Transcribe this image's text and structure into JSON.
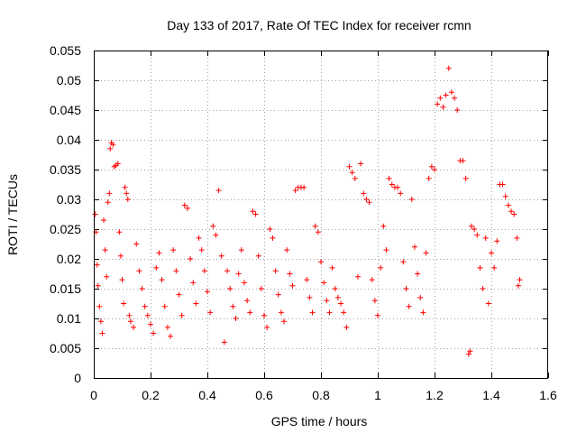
{
  "chart_data": {
    "type": "scatter",
    "title": "Day 133 of 2017, Rate Of TEC Index for receiver rcmn",
    "xlabel": "GPS time / hours",
    "ylabel": "ROTI / TECUs",
    "xlim": [
      0,
      1.6
    ],
    "ylim": [
      0,
      0.055
    ],
    "xticks": [
      0,
      0.2,
      0.4,
      0.6,
      0.8,
      1,
      1.2,
      1.4,
      1.6
    ],
    "xtick_labels": [
      "0",
      "0.2",
      "0.4",
      "0.6",
      "0.8",
      "1",
      "1.2",
      "1.4",
      "1.6"
    ],
    "yticks": [
      0,
      0.005,
      0.01,
      0.015,
      0.02,
      0.025,
      0.03,
      0.035,
      0.04,
      0.045,
      0.05,
      0.055
    ],
    "ytick_labels": [
      "0",
      "0.005",
      "0.01",
      "0.015",
      "0.02",
      "0.025",
      "0.03",
      "0.035",
      "0.04",
      "0.045",
      "0.05",
      "0.055"
    ],
    "grid": true,
    "marker": "+",
    "marker_color": "#ff0000",
    "series": [
      {
        "name": "ROTI",
        "points": [
          [
            0.005,
            0.0275
          ],
          [
            0.008,
            0.0245
          ],
          [
            0.012,
            0.019
          ],
          [
            0.015,
            0.0155
          ],
          [
            0.02,
            0.012
          ],
          [
            0.025,
            0.0095
          ],
          [
            0.03,
            0.0075
          ],
          [
            0.035,
            0.0265
          ],
          [
            0.04,
            0.0215
          ],
          [
            0.045,
            0.017
          ],
          [
            0.05,
            0.0295
          ],
          [
            0.055,
            0.031
          ],
          [
            0.058,
            0.0385
          ],
          [
            0.062,
            0.0395
          ],
          [
            0.068,
            0.0392
          ],
          [
            0.072,
            0.0355
          ],
          [
            0.078,
            0.0357
          ],
          [
            0.085,
            0.036
          ],
          [
            0.09,
            0.0245
          ],
          [
            0.095,
            0.0205
          ],
          [
            0.1,
            0.0165
          ],
          [
            0.105,
            0.0125
          ],
          [
            0.11,
            0.032
          ],
          [
            0.115,
            0.031
          ],
          [
            0.12,
            0.03
          ],
          [
            0.125,
            0.0105
          ],
          [
            0.13,
            0.0095
          ],
          [
            0.14,
            0.0085
          ],
          [
            0.15,
            0.0225
          ],
          [
            0.16,
            0.018
          ],
          [
            0.17,
            0.015
          ],
          [
            0.18,
            0.012
          ],
          [
            0.19,
            0.0105
          ],
          [
            0.2,
            0.009
          ],
          [
            0.21,
            0.0075
          ],
          [
            0.22,
            0.0185
          ],
          [
            0.23,
            0.021
          ],
          [
            0.24,
            0.0165
          ],
          [
            0.25,
            0.012
          ],
          [
            0.26,
            0.0085
          ],
          [
            0.27,
            0.007
          ],
          [
            0.28,
            0.0215
          ],
          [
            0.29,
            0.018
          ],
          [
            0.3,
            0.014
          ],
          [
            0.31,
            0.0105
          ],
          [
            0.32,
            0.029
          ],
          [
            0.33,
            0.0285
          ],
          [
            0.34,
            0.02
          ],
          [
            0.35,
            0.016
          ],
          [
            0.36,
            0.0125
          ],
          [
            0.37,
            0.0235
          ],
          [
            0.38,
            0.0215
          ],
          [
            0.39,
            0.018
          ],
          [
            0.4,
            0.0145
          ],
          [
            0.41,
            0.011
          ],
          [
            0.42,
            0.0255
          ],
          [
            0.43,
            0.024
          ],
          [
            0.44,
            0.0315
          ],
          [
            0.45,
            0.0205
          ],
          [
            0.46,
            0.006
          ],
          [
            0.47,
            0.018
          ],
          [
            0.48,
            0.015
          ],
          [
            0.49,
            0.012
          ],
          [
            0.5,
            0.01
          ],
          [
            0.51,
            0.0175
          ],
          [
            0.52,
            0.0215
          ],
          [
            0.53,
            0.016
          ],
          [
            0.54,
            0.013
          ],
          [
            0.55,
            0.011
          ],
          [
            0.56,
            0.028
          ],
          [
            0.57,
            0.0275
          ],
          [
            0.58,
            0.0205
          ],
          [
            0.59,
            0.015
          ],
          [
            0.6,
            0.0105
          ],
          [
            0.61,
            0.0085
          ],
          [
            0.62,
            0.025
          ],
          [
            0.63,
            0.0235
          ],
          [
            0.64,
            0.018
          ],
          [
            0.65,
            0.014
          ],
          [
            0.66,
            0.011
          ],
          [
            0.67,
            0.0095
          ],
          [
            0.68,
            0.0215
          ],
          [
            0.69,
            0.0175
          ],
          [
            0.7,
            0.0155
          ],
          [
            0.71,
            0.0315
          ],
          [
            0.72,
            0.032
          ],
          [
            0.73,
            0.032
          ],
          [
            0.74,
            0.032
          ],
          [
            0.75,
            0.0165
          ],
          [
            0.76,
            0.0135
          ],
          [
            0.77,
            0.011
          ],
          [
            0.78,
            0.0255
          ],
          [
            0.79,
            0.0245
          ],
          [
            0.8,
            0.0195
          ],
          [
            0.81,
            0.016
          ],
          [
            0.82,
            0.013
          ],
          [
            0.83,
            0.011
          ],
          [
            0.84,
            0.0185
          ],
          [
            0.85,
            0.015
          ],
          [
            0.86,
            0.0135
          ],
          [
            0.87,
            0.0125
          ],
          [
            0.88,
            0.011
          ],
          [
            0.89,
            0.0085
          ],
          [
            0.9,
            0.0355
          ],
          [
            0.91,
            0.0345
          ],
          [
            0.92,
            0.0335
          ],
          [
            0.93,
            0.017
          ],
          [
            0.94,
            0.036
          ],
          [
            0.95,
            0.031
          ],
          [
            0.96,
            0.03
          ],
          [
            0.97,
            0.0295
          ],
          [
            0.98,
            0.0165
          ],
          [
            0.99,
            0.013
          ],
          [
            1.0,
            0.0105
          ],
          [
            1.01,
            0.0185
          ],
          [
            1.02,
            0.0255
          ],
          [
            1.03,
            0.0215
          ],
          [
            1.04,
            0.0335
          ],
          [
            1.05,
            0.0325
          ],
          [
            1.06,
            0.032
          ],
          [
            1.07,
            0.032
          ],
          [
            1.08,
            0.031
          ],
          [
            1.09,
            0.0195
          ],
          [
            1.1,
            0.015
          ],
          [
            1.11,
            0.012
          ],
          [
            1.12,
            0.03
          ],
          [
            1.13,
            0.022
          ],
          [
            1.14,
            0.0175
          ],
          [
            1.15,
            0.0135
          ],
          [
            1.16,
            0.011
          ],
          [
            1.17,
            0.021
          ],
          [
            1.18,
            0.0335
          ],
          [
            1.19,
            0.0355
          ],
          [
            1.2,
            0.035
          ],
          [
            1.21,
            0.046
          ],
          [
            1.22,
            0.047
          ],
          [
            1.23,
            0.0455
          ],
          [
            1.24,
            0.0475
          ],
          [
            1.25,
            0.052
          ],
          [
            1.26,
            0.048
          ],
          [
            1.27,
            0.047
          ],
          [
            1.28,
            0.045
          ],
          [
            1.29,
            0.0365
          ],
          [
            1.3,
            0.0365
          ],
          [
            1.31,
            0.0335
          ],
          [
            1.32,
            0.004
          ],
          [
            1.325,
            0.0045
          ],
          [
            1.33,
            0.0255
          ],
          [
            1.34,
            0.025
          ],
          [
            1.35,
            0.024
          ],
          [
            1.36,
            0.0185
          ],
          [
            1.37,
            0.015
          ],
          [
            1.38,
            0.0235
          ],
          [
            1.39,
            0.0125
          ],
          [
            1.4,
            0.021
          ],
          [
            1.41,
            0.0185
          ],
          [
            1.42,
            0.023
          ],
          [
            1.43,
            0.0325
          ],
          [
            1.44,
            0.0325
          ],
          [
            1.45,
            0.0305
          ],
          [
            1.46,
            0.029
          ],
          [
            1.47,
            0.028
          ],
          [
            1.48,
            0.0275
          ],
          [
            1.49,
            0.0235
          ],
          [
            1.495,
            0.0155
          ],
          [
            1.5,
            0.0165
          ]
        ]
      }
    ]
  }
}
